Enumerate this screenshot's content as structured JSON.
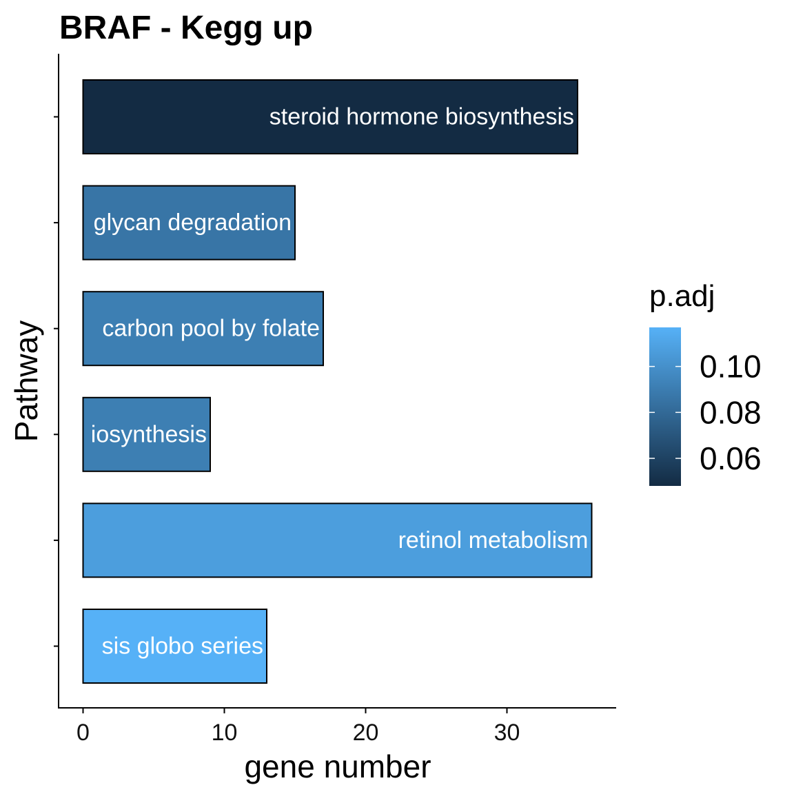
{
  "chart_data": {
    "type": "bar",
    "orientation": "horizontal",
    "title": "BRAF - Kegg up",
    "xlabel": "gene number",
    "ylabel": "Pathway",
    "xlim": [
      0,
      37
    ],
    "xticks": [
      0,
      10,
      20,
      30
    ],
    "grid": false,
    "legend": {
      "title": "p.adj",
      "placement": "right",
      "type": "colorbar",
      "range": [
        0.048,
        0.117
      ],
      "ticks": [
        0.06,
        0.08,
        0.1
      ],
      "tick_labels": [
        "0.06",
        "0.08",
        "0.10"
      ],
      "color_low": "#132B43",
      "color_high": "#56B1F7"
    },
    "bars": [
      {
        "label": "steroid hormone biosynthesis",
        "value": 35,
        "p_adj": 0.048
      },
      {
        "label": "glycan degradation",
        "value": 15,
        "p_adj": 0.086
      },
      {
        "label": "carbon pool by folate",
        "value": 17,
        "p_adj": 0.091
      },
      {
        "label": "iosynthesis",
        "value": 9,
        "p_adj": 0.091
      },
      {
        "label": "retinol metabolism",
        "value": 36,
        "p_adj": 0.107
      },
      {
        "label": "sis globo series",
        "value": 13,
        "p_adj": 0.117
      }
    ]
  }
}
